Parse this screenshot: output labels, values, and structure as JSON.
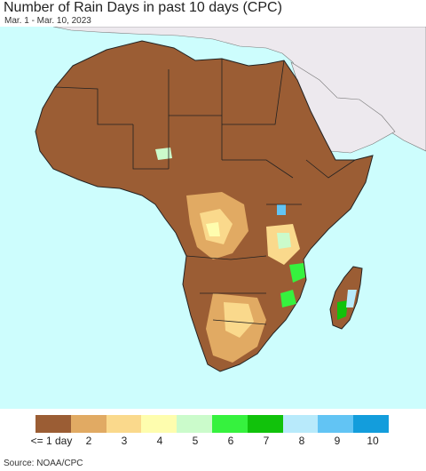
{
  "title": "Number of Rain Days in past 10 days (CPC)",
  "subtitle": "Mar. 1 - Mar. 10, 2023",
  "source": "Source: NOAA/CPC",
  "legend": {
    "colors": [
      "#9b5d34",
      "#e1aa63",
      "#fad98c",
      "#fefdae",
      "#cbfbcb",
      "#36f23e",
      "#11c20b",
      "#b8eafb",
      "#62c4f4",
      "#139ddc"
    ],
    "labels": [
      "<= 1 day",
      "2",
      "3",
      "4",
      "5",
      "6",
      "7",
      "8",
      "9",
      "10"
    ]
  },
  "map_colors": {
    "ocean": "#cdfdfd",
    "land_outside": "#ede9ee",
    "dominant": "#9b5d34"
  }
}
